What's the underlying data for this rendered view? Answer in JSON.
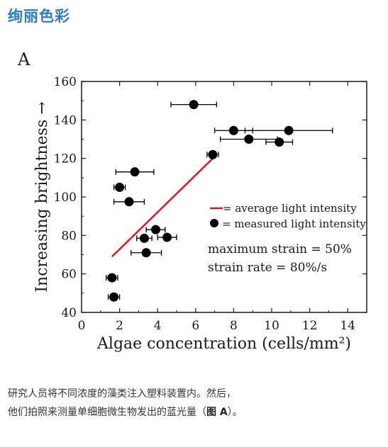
{
  "heading": "绚丽色彩",
  "caption": {
    "line1": "研究人员将不同浓度的藻类注入塑料装置内。然后，",
    "line2_before": "他们拍照来测量单细胞微生物发出的蓝光量（",
    "line2_figure": "图 A",
    "line2_after": "）。"
  },
  "colors": {
    "heading": "#2f7dbf",
    "line": "#e8141a",
    "points": "#000000"
  },
  "chart_data": {
    "type": "scatter",
    "panel_label": "A",
    "xlabel": "Algae concentration (cells/mm²)",
    "ylabel": "Increasing brightness →",
    "xlim": [
      0,
      15
    ],
    "ylim": [
      40,
      160
    ],
    "xticks": [
      0,
      2,
      4,
      6,
      8,
      10,
      12,
      14
    ],
    "yticks": [
      40,
      60,
      80,
      100,
      120,
      140,
      160
    ],
    "grid": false,
    "points": [
      {
        "x": 1.6,
        "y": 58,
        "xerr_low": 0.3,
        "xerr_high": 0.3
      },
      {
        "x": 1.7,
        "y": 48,
        "xerr_low": 0.3,
        "xerr_high": 0.3
      },
      {
        "x": 2.0,
        "y": 105,
        "xerr_low": 0.3,
        "xerr_high": 0.3
      },
      {
        "x": 2.5,
        "y": 97.5,
        "xerr_low": 0.8,
        "xerr_high": 0.8
      },
      {
        "x": 2.8,
        "y": 113,
        "xerr_low": 1.0,
        "xerr_high": 1.0
      },
      {
        "x": 3.3,
        "y": 78.5,
        "xerr_low": 0.4,
        "xerr_high": 0.4
      },
      {
        "x": 3.4,
        "y": 71,
        "xerr_low": 0.8,
        "xerr_high": 0.8
      },
      {
        "x": 3.9,
        "y": 83,
        "xerr_low": 0.5,
        "xerr_high": 0.5
      },
      {
        "x": 4.5,
        "y": 79,
        "xerr_low": 0.5,
        "xerr_high": 0.5
      },
      {
        "x": 5.9,
        "y": 148,
        "xerr_low": 1.2,
        "xerr_high": 1.2
      },
      {
        "x": 6.9,
        "y": 122,
        "xerr_low": 0.3,
        "xerr_high": 0.3
      },
      {
        "x": 8.0,
        "y": 134.5,
        "xerr_low": 1.0,
        "xerr_high": 1.0
      },
      {
        "x": 8.8,
        "y": 130,
        "xerr_low": 1.5,
        "xerr_high": 1.5
      },
      {
        "x": 10.4,
        "y": 128.5,
        "xerr_low": 0.7,
        "xerr_high": 0.7
      },
      {
        "x": 10.9,
        "y": 134.5,
        "xerr_low": 2.3,
        "xerr_high": 2.3
      }
    ],
    "line": {
      "x": [
        1.6,
        6.9
      ],
      "y": [
        69,
        120
      ]
    },
    "legend": [
      {
        "label": "= average light intensity",
        "kind": "line"
      },
      {
        "label": "= measured light intensity",
        "kind": "point"
      }
    ],
    "annotations": [
      "maximum strain = 50%",
      "strain rate = 80%/s"
    ]
  }
}
